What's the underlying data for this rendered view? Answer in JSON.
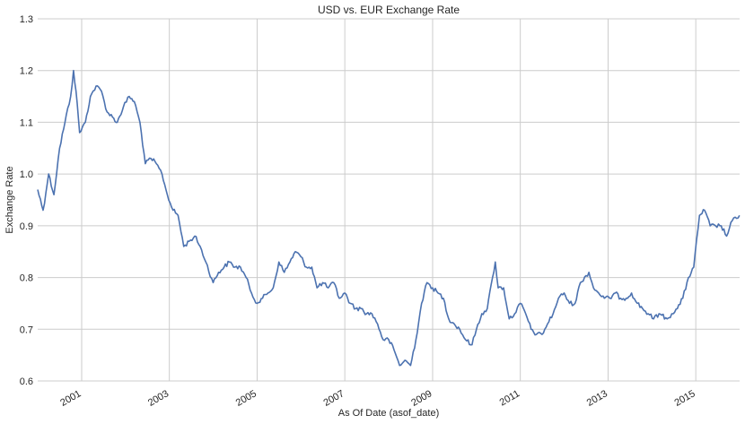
{
  "chart_data": {
    "type": "line",
    "title": "USD vs. EUR Exchange Rate",
    "xlabel": "As Of Date (asof_date)",
    "ylabel": "Exchange Rate",
    "ylim": [
      0.6,
      1.3
    ],
    "xlim": [
      "2000-01-01",
      "2016-01-01"
    ],
    "grid": true,
    "colors": {
      "line": "#4c72b0",
      "grid": "#cccccc",
      "background": "#ffffff"
    },
    "y_ticks": [
      0.6,
      0.7,
      0.8,
      0.9,
      1.0,
      1.1,
      1.2,
      1.3
    ],
    "y_tick_labels": [
      "0.6",
      "0.7",
      "0.8",
      "0.9",
      "1.0",
      "1.1",
      "1.2",
      "1.3"
    ],
    "x_ticks": [
      "2001-01-01",
      "2003-01-01",
      "2005-01-01",
      "2007-01-01",
      "2009-01-01",
      "2011-01-01",
      "2013-01-01",
      "2015-01-01"
    ],
    "x_tick_labels": [
      "2001",
      "2003",
      "2005",
      "2007",
      "2009",
      "2011",
      "2013",
      "2015"
    ],
    "series": [
      {
        "x": [
          "2000-01-01",
          "2000-02-15",
          "2000-04-01",
          "2000-05-15",
          "2000-07-01",
          "2000-08-15",
          "2000-10-01",
          "2000-10-25",
          "2000-11-15",
          "2000-12-15",
          "2001-02-01",
          "2001-03-15",
          "2001-05-01",
          "2001-06-15",
          "2001-08-01",
          "2001-09-15",
          "2001-10-25",
          "2001-12-15",
          "2002-02-01",
          "2002-03-15",
          "2002-05-01",
          "2002-06-15",
          "2002-08-01",
          "2002-09-15",
          "2002-11-01",
          "2002-12-15",
          "2003-02-01",
          "2003-03-15",
          "2003-05-01",
          "2003-06-15",
          "2003-08-01",
          "2003-09-15",
          "2003-11-01",
          "2004-01-01",
          "2004-02-15",
          "2004-04-01",
          "2004-05-15",
          "2004-07-01",
          "2004-08-15",
          "2004-10-01",
          "2004-11-15",
          "2005-01-01",
          "2005-02-15",
          "2005-04-01",
          "2005-05-15",
          "2005-07-01",
          "2005-08-15",
          "2005-10-01",
          "2005-11-15",
          "2006-01-01",
          "2006-02-15",
          "2006-04-01",
          "2006-05-15",
          "2006-07-01",
          "2006-08-15",
          "2006-10-01",
          "2006-11-15",
          "2007-01-01",
          "2007-02-15",
          "2007-04-01",
          "2007-05-15",
          "2007-07-01",
          "2007-08-15",
          "2007-10-01",
          "2007-11-15",
          "2008-01-01",
          "2008-02-15",
          "2008-04-01",
          "2008-05-15",
          "2008-07-01",
          "2008-08-15",
          "2008-10-01",
          "2008-11-15",
          "2009-01-01",
          "2009-02-15",
          "2009-04-01",
          "2009-05-15",
          "2009-07-01",
          "2009-08-15",
          "2009-10-01",
          "2009-11-25",
          "2010-01-01",
          "2010-02-15",
          "2010-04-01",
          "2010-05-15",
          "2010-06-07",
          "2010-07-01",
          "2010-08-15",
          "2010-10-01",
          "2010-11-15",
          "2011-01-01",
          "2011-02-15",
          "2011-04-01",
          "2011-05-15",
          "2011-07-01",
          "2011-08-15",
          "2011-10-01",
          "2011-11-15",
          "2012-01-01",
          "2012-02-15",
          "2012-04-01",
          "2012-05-15",
          "2012-07-25",
          "2012-09-01",
          "2012-10-15",
          "2012-12-01",
          "2013-01-15",
          "2013-03-01",
          "2013-04-15",
          "2013-06-01",
          "2013-07-15",
          "2013-09-01",
          "2013-10-15",
          "2013-12-01",
          "2014-01-15",
          "2014-03-01",
          "2014-05-08",
          "2014-06-15",
          "2014-08-01",
          "2014-09-15",
          "2014-11-01",
          "2014-12-15",
          "2015-02-01",
          "2015-03-15",
          "2015-05-01",
          "2015-06-15",
          "2015-08-01",
          "2015-09-15",
          "2015-11-01",
          "2015-12-31"
        ],
        "values": [
          0.97,
          0.93,
          1.0,
          0.96,
          1.05,
          1.1,
          1.15,
          1.2,
          1.16,
          1.08,
          1.1,
          1.15,
          1.17,
          1.16,
          1.12,
          1.11,
          1.1,
          1.13,
          1.15,
          1.14,
          1.1,
          1.02,
          1.03,
          1.02,
          1.0,
          0.96,
          0.93,
          0.92,
          0.86,
          0.87,
          0.88,
          0.86,
          0.83,
          0.79,
          0.81,
          0.82,
          0.83,
          0.82,
          0.82,
          0.8,
          0.77,
          0.75,
          0.76,
          0.77,
          0.78,
          0.83,
          0.81,
          0.83,
          0.85,
          0.84,
          0.82,
          0.82,
          0.78,
          0.79,
          0.78,
          0.79,
          0.76,
          0.77,
          0.75,
          0.74,
          0.74,
          0.73,
          0.73,
          0.71,
          0.68,
          0.68,
          0.66,
          0.63,
          0.64,
          0.63,
          0.68,
          0.75,
          0.79,
          0.78,
          0.77,
          0.76,
          0.72,
          0.71,
          0.7,
          0.68,
          0.67,
          0.7,
          0.73,
          0.74,
          0.8,
          0.83,
          0.78,
          0.78,
          0.72,
          0.73,
          0.75,
          0.73,
          0.7,
          0.69,
          0.69,
          0.71,
          0.73,
          0.76,
          0.77,
          0.75,
          0.75,
          0.79,
          0.81,
          0.78,
          0.77,
          0.76,
          0.76,
          0.77,
          0.76,
          0.76,
          0.77,
          0.75,
          0.74,
          0.73,
          0.72,
          0.73,
          0.72,
          0.73,
          0.74,
          0.76,
          0.8,
          0.82,
          0.92,
          0.93,
          0.9,
          0.9,
          0.9,
          0.88,
          0.91,
          0.92
        ]
      }
    ]
  }
}
